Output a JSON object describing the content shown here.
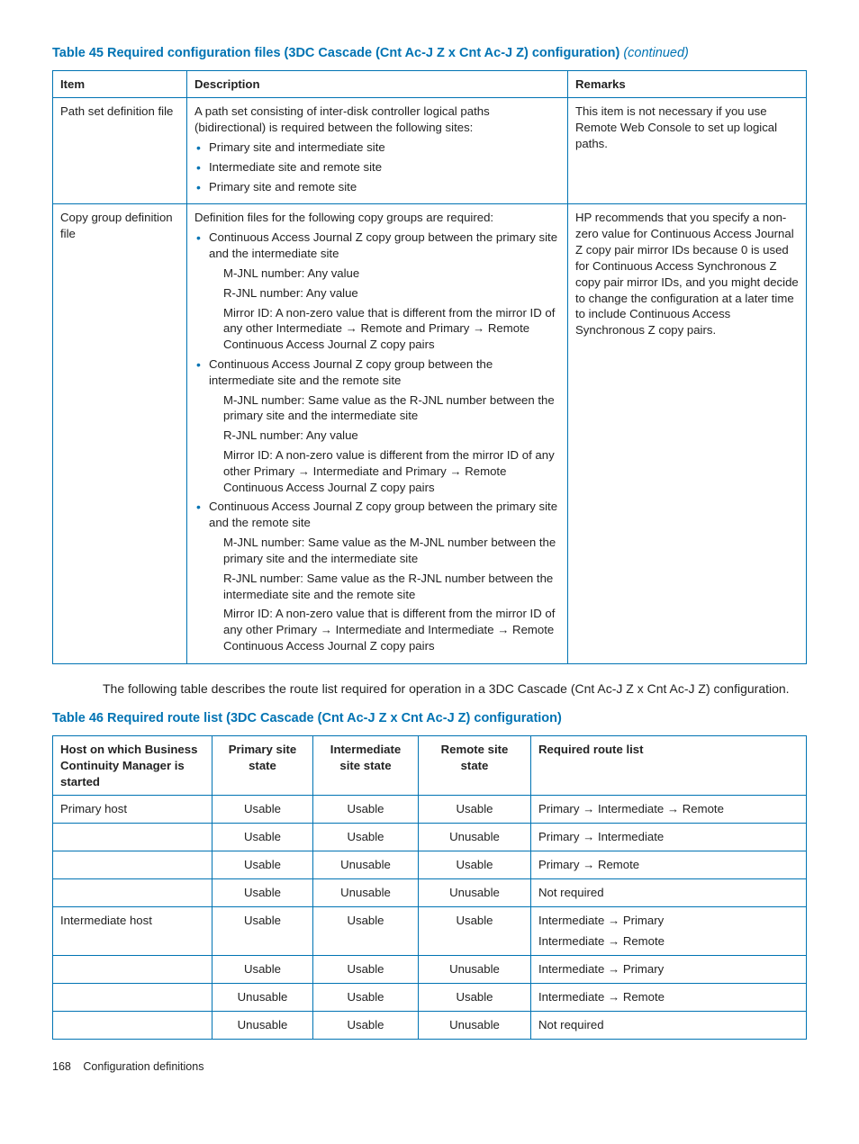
{
  "colors": {
    "accent": "#0073b3",
    "text": "#222",
    "bg": "#ffffff"
  },
  "table45": {
    "title_prefix": "Table 45 Required configuration files (3DC Cascade (Cnt Ac-J Z x Cnt Ac-J Z) configuration)",
    "continued": "(continued)",
    "columns": [
      "Item",
      "Description",
      "Remarks"
    ],
    "row1": {
      "item": "Path set definition file",
      "desc_intro": "A path set consisting of inter-disk controller logical paths (bidirectional) is required between the following sites:",
      "desc_bullets": [
        "Primary site and intermediate site",
        "Intermediate site and remote site",
        "Primary site and remote site"
      ],
      "remarks": "This item is not necessary if you use Remote Web Console to set up logical paths."
    },
    "row2": {
      "item": "Copy group definition file",
      "desc_intro": "Definition files for the following copy groups are required:",
      "b1": "Continuous Access Journal Z copy group between the primary site and the intermediate site",
      "b1_s1": "M-JNL number: Any value",
      "b1_s2": "R-JNL number: Any value",
      "b1_s3": "Mirror ID: A non-zero value that is different from the mirror ID of any other Intermediate → Remote and Primary → Remote Continuous Access Journal Z copy pairs",
      "b2": "Continuous Access Journal Z copy group between the intermediate site and the remote site",
      "b2_s1": "M-JNL number: Same value as the R-JNL number between the primary site and the intermediate site",
      "b2_s2": "R-JNL number: Any value",
      "b2_s3": "Mirror ID: A non-zero value is different from the mirror ID of any other Primary → Intermediate and Primary → Remote Continuous Access Journal Z copy pairs",
      "b3": "Continuous Access Journal Z copy group between the primary site and the remote site",
      "b3_s1": "M-JNL number: Same value as the M-JNL number between the primary site and the intermediate site",
      "b3_s2": "R-JNL number: Same value as the R-JNL number between the intermediate site and the remote site",
      "b3_s3": "Mirror ID: A non-zero value that is different from the mirror ID of any other Primary → Intermediate and Intermediate → Remote Continuous Access Journal Z copy pairs",
      "remarks": "HP recommends that you specify a non-zero value for Continuous Access Journal Z copy pair mirror IDs because 0 is used for Continuous Access Synchronous Z copy pair mirror IDs, and you might decide to change the configuration at a later time to include Continuous Access Synchronous Z copy pairs."
    }
  },
  "between_para": "The following table describes the route list required for operation in a 3DC Cascade (Cnt Ac-J Z x Cnt Ac-J Z) configuration.",
  "table46": {
    "title": "Table 46 Required route list (3DC Cascade (Cnt Ac-J Z x Cnt Ac-J Z) configuration)",
    "columns": [
      "Host on which Business Continuity Manager is started",
      "Primary site state",
      "Intermediate site state",
      "Remote site state",
      "Required route list"
    ],
    "rows": [
      {
        "host": "Primary host",
        "p": "Usable",
        "i": "Usable",
        "r": "Usable",
        "route": "Primary → Intermediate → Remote"
      },
      {
        "host": "",
        "p": "Usable",
        "i": "Usable",
        "r": "Unusable",
        "route": "Primary → Intermediate"
      },
      {
        "host": "",
        "p": "Usable",
        "i": "Unusable",
        "r": "Usable",
        "route": "Primary → Remote"
      },
      {
        "host": "",
        "p": "Usable",
        "i": "Unusable",
        "r": "Unusable",
        "route": "Not required"
      },
      {
        "host": "Intermediate host",
        "p": "Usable",
        "i": "Usable",
        "r": "Usable",
        "route": "Intermediate → Primary",
        "route2": "Intermediate → Remote"
      },
      {
        "host": "",
        "p": "Usable",
        "i": "Usable",
        "r": "Unusable",
        "route": "Intermediate → Primary"
      },
      {
        "host": "",
        "p": "Unusable",
        "i": "Usable",
        "r": "Usable",
        "route": "Intermediate → Remote"
      },
      {
        "host": "",
        "p": "Unusable",
        "i": "Usable",
        "r": "Unusable",
        "route": "Not required"
      }
    ]
  },
  "footer": {
    "page": "168",
    "section": "Configuration definitions"
  }
}
